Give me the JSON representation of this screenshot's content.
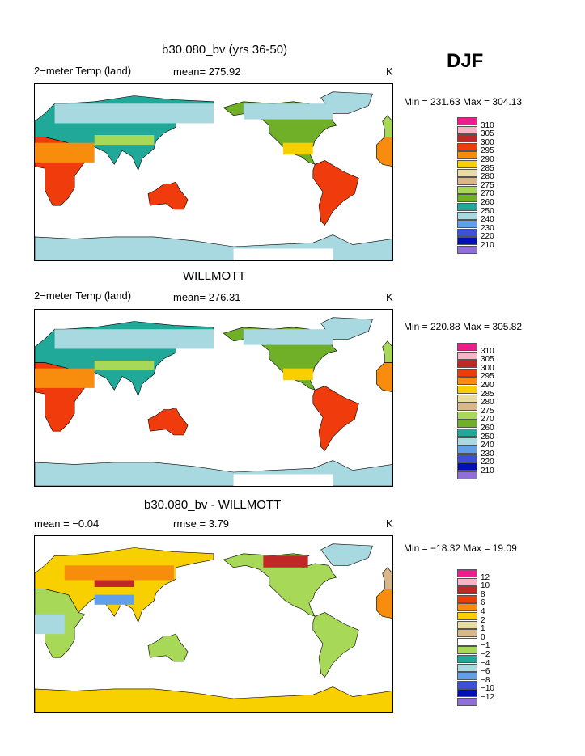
{
  "season": "DJF",
  "panels": [
    {
      "title": "b30.080_bv (yrs 36-50)",
      "left_text": "2−meter Temp (land)",
      "mid_text": "mean= 275.92",
      "unit": "K",
      "minmax": "Min = 231.63 Max = 304.13",
      "colorbar": {
        "labels": [
          "310",
          "305",
          "300",
          "295",
          "290",
          "285",
          "280",
          "275",
          "270",
          "260",
          "250",
          "240",
          "230",
          "220",
          "210"
        ],
        "colors": [
          "#ee1c8c",
          "#f8b4c4",
          "#c02828",
          "#f03c0c",
          "#f88c0c",
          "#f8d000",
          "#e8dca0",
          "#d8b888",
          "#a8d858",
          "#70b028",
          "#20a898",
          "#a8d8e0",
          "#60a0e8",
          "#3c50d8",
          "#0010b8",
          "#9070d8"
        ]
      },
      "map_mode": "abs"
    },
    {
      "title": "WILLMOTT",
      "left_text": "2−meter Temp (land)",
      "mid_text": "mean= 276.31",
      "unit": "K",
      "minmax": "Min = 220.88 Max = 305.82",
      "colorbar": {
        "labels": [
          "310",
          "305",
          "300",
          "295",
          "290",
          "285",
          "280",
          "275",
          "270",
          "260",
          "250",
          "240",
          "230",
          "220",
          "210"
        ],
        "colors": [
          "#ee1c8c",
          "#f8b4c4",
          "#c02828",
          "#f03c0c",
          "#f88c0c",
          "#f8d000",
          "#e8dca0",
          "#d8b888",
          "#a8d858",
          "#70b028",
          "#20a898",
          "#a8d8e0",
          "#60a0e8",
          "#3c50d8",
          "#0010b8",
          "#9070d8"
        ]
      },
      "map_mode": "abs"
    },
    {
      "title": "b30.080_bv - WILLMOTT",
      "left_text": "mean =  −0.04",
      "mid_text": "rmse =    3.79",
      "unit": "K",
      "minmax": "Min = −18.32 Max =  19.09",
      "colorbar": {
        "labels": [
          "12",
          "10",
          "8",
          "6",
          "4",
          "2",
          "1",
          "0",
          "−1",
          "−2",
          "−4",
          "−6",
          "−8",
          "−10",
          "−12"
        ],
        "colors": [
          "#ee1c8c",
          "#f8b4c4",
          "#c02828",
          "#f03c0c",
          "#f88c0c",
          "#f8d000",
          "#e8dca0",
          "#d8b888",
          "#ffffff",
          "#a8d858",
          "#20a898",
          "#a8d8e0",
          "#60a0e8",
          "#3c50d8",
          "#0010b8",
          "#9070d8"
        ]
      },
      "map_mode": "diff"
    }
  ]
}
